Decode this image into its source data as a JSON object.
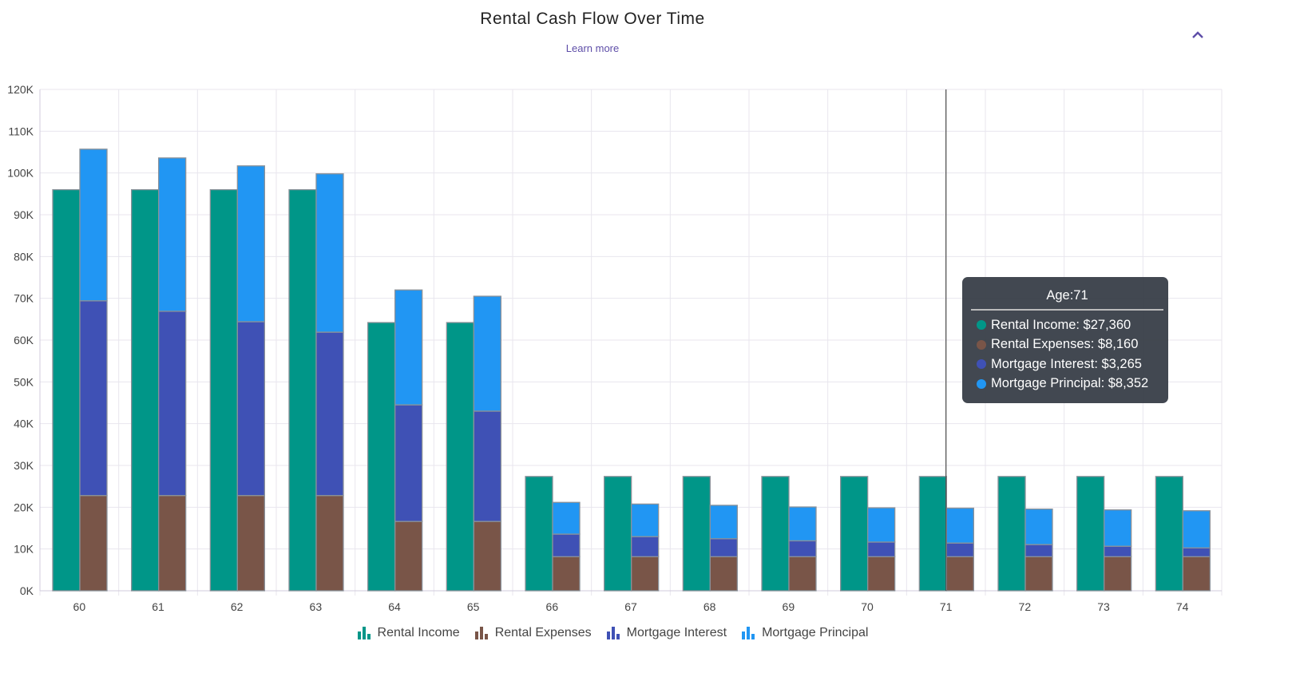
{
  "header": {
    "title": "Rental Cash Flow Over Time",
    "learn_more": "Learn more",
    "collapse_icon": "chevron-up-icon"
  },
  "colors": {
    "Rental Income": "#009688",
    "Rental Expenses": "#795548",
    "Mortgage Interest": "#3F51B5",
    "Mortgage Principal": "#2196F3",
    "accent": "#5e4ea8"
  },
  "chart_data": {
    "type": "bar",
    "stacked": "Rental Expenses, Mortgage Interest and Mortgage Principal stacked; Rental Income separate",
    "title": "Rental Cash Flow Over Time",
    "categories": [
      "60",
      "61",
      "62",
      "63",
      "64",
      "65",
      "66",
      "67",
      "68",
      "69",
      "70",
      "71",
      "72",
      "73",
      "74"
    ],
    "ylim": [
      0,
      120000
    ],
    "yticks": [
      "0K",
      "10K",
      "20K",
      "30K",
      "40K",
      "50K",
      "60K",
      "70K",
      "80K",
      "90K",
      "100K",
      "110K",
      "120K"
    ],
    "grid": true,
    "legend_position": "bottom",
    "series": [
      {
        "name": "Rental Income",
        "stack": "a",
        "values": [
          96000,
          96000,
          96000,
          96000,
          64200,
          64200,
          27360,
          27360,
          27360,
          27360,
          27360,
          27360,
          27360,
          27360,
          27360
        ]
      },
      {
        "name": "Rental Expenses",
        "stack": "b",
        "values": [
          22800,
          22800,
          22800,
          22800,
          16600,
          16600,
          8160,
          8160,
          8160,
          8160,
          8160,
          8160,
          8160,
          8160,
          8160
        ]
      },
      {
        "name": "Mortgage Interest",
        "stack": "b",
        "values": [
          46600,
          44100,
          41600,
          39100,
          27900,
          26400,
          5400,
          4800,
          4300,
          3800,
          3500,
          3265,
          2900,
          2500,
          2100
        ]
      },
      {
        "name": "Mortgage Principal",
        "stack": "b",
        "values": [
          36300,
          36700,
          37300,
          37900,
          27500,
          27500,
          7600,
          7800,
          8000,
          8100,
          8200,
          8352,
          8500,
          8700,
          8900
        ]
      }
    ],
    "tooltip": {
      "title": "Age:71",
      "hover_category": "71",
      "rows": [
        "Rental Income: $27,360",
        "Rental Expenses: $8,160",
        "Mortgage Interest: $3,265",
        "Mortgage Principal: $8,352"
      ]
    }
  }
}
